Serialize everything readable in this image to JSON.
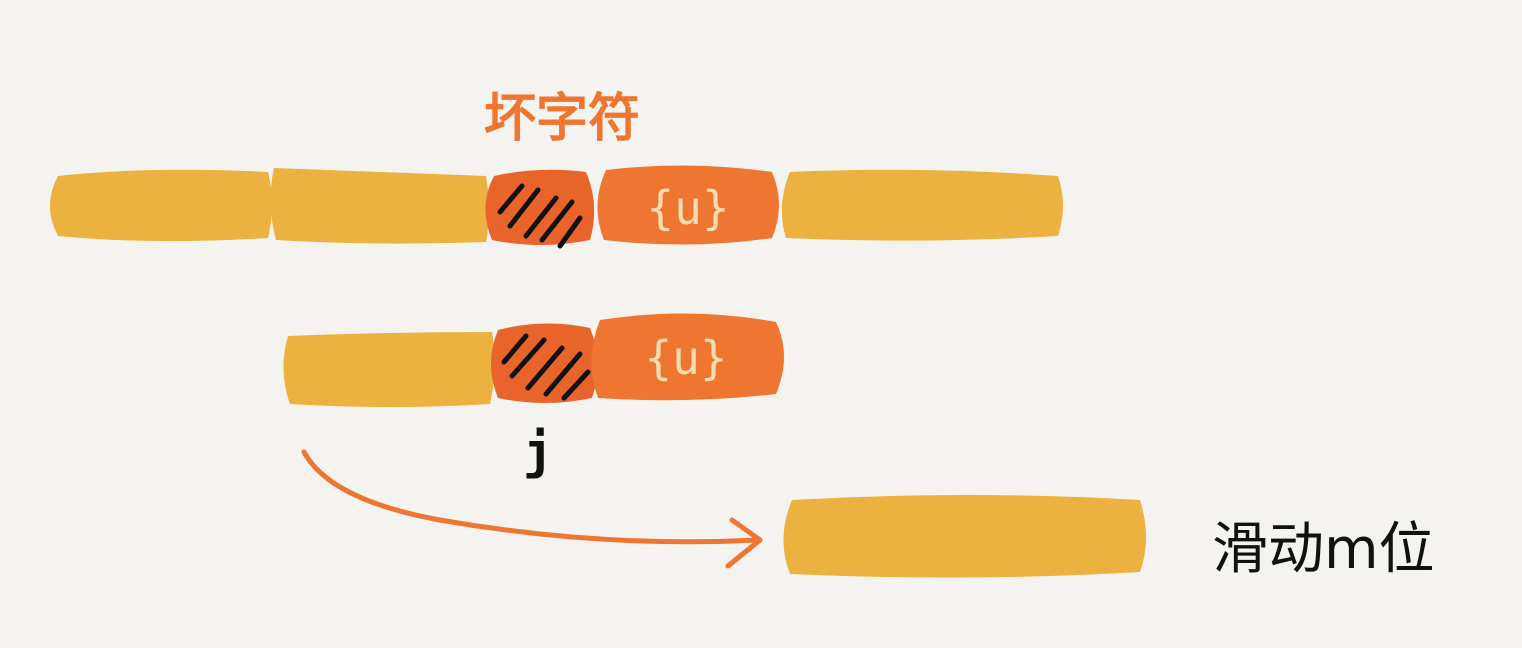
{
  "labels": {
    "bad_char": "坏字符",
    "suffix_top": "{u}",
    "suffix_pattern": "{u}",
    "index_j": "j",
    "slide": "滑动m位"
  },
  "colors": {
    "background": "#f4f3ef",
    "block_yellow": "#ebb240",
    "block_orange": "#ee7630",
    "bad_char_orange": "#e8642a",
    "hatch": "#111111",
    "suffix_text": "#f5dcb0",
    "arrow": "#ee7630",
    "label_orange": "#ee7630",
    "label_dark": "#111111"
  }
}
